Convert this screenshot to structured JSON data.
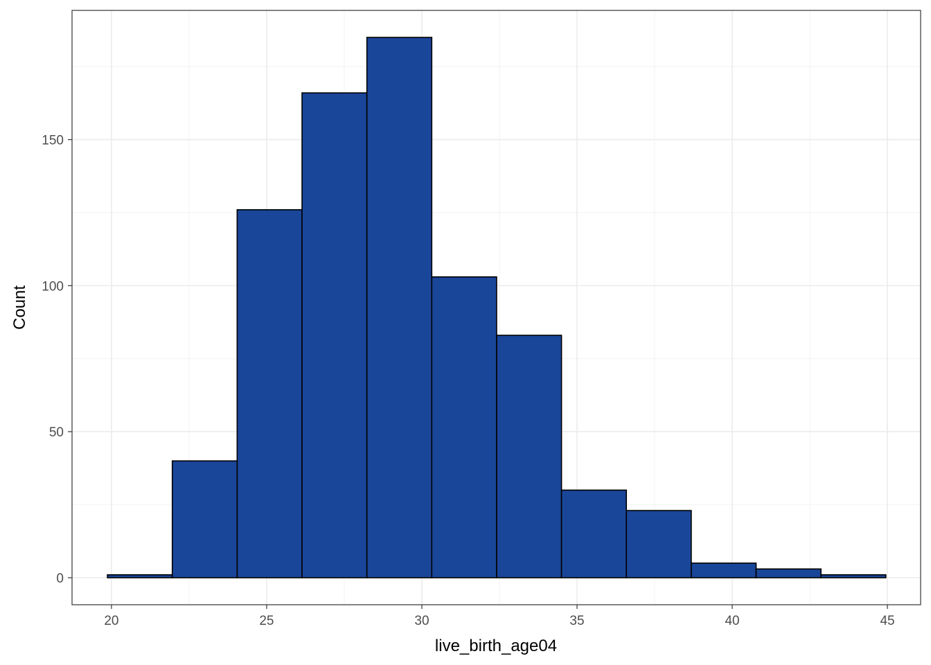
{
  "chart_data": {
    "type": "bar",
    "subtype": "histogram",
    "title": "",
    "xlabel": "live_birth_age04",
    "ylabel": "Count",
    "xlim": [
      18.73,
      46.07
    ],
    "ylim": [
      -9.25,
      194.25
    ],
    "xticks": [
      20,
      25,
      30,
      35,
      40,
      45
    ],
    "yticks": [
      0,
      50,
      100,
      150
    ],
    "xticks_minor": [
      22.5,
      27.5,
      32.5,
      37.5,
      42.5
    ],
    "yticks_minor": [
      25,
      75,
      125,
      175
    ],
    "grid": true,
    "bin_edges": [
      19.87,
      21.96,
      24.05,
      26.14,
      28.23,
      30.32,
      32.41,
      34.5,
      36.59,
      38.68,
      40.77,
      42.86,
      44.95
    ],
    "values": [
      1,
      40,
      126,
      166,
      185,
      103,
      83,
      30,
      23,
      5,
      3,
      1
    ],
    "bar_color": "#1A4699",
    "bar_outline": "#000000"
  }
}
